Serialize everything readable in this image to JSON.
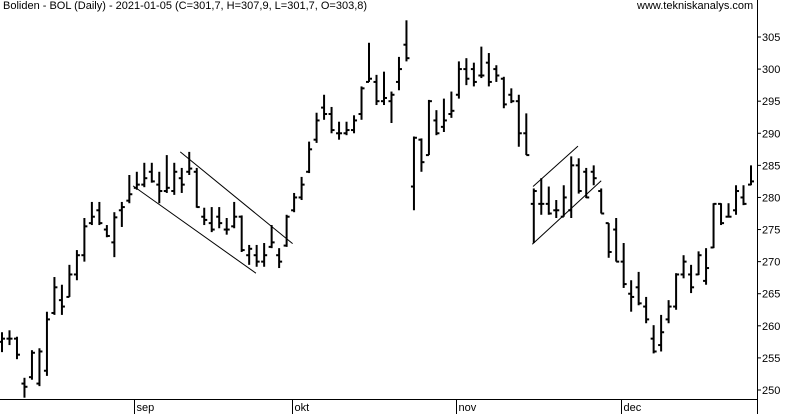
{
  "header": {
    "title": "Boliden - BOL (Daily) - 2021-01-05 (C=301,7, H=307,9, L=301,7, O=303,8)",
    "watermark": "www.tekniskanalys.com"
  },
  "chart_data": {
    "type": "ohlc",
    "title": "Boliden - BOL (Daily) - 2021-01-05 (C=301,7, H=307,9, L=301,7, O=303,8)",
    "ylim": [
      248,
      309
    ],
    "y_ticks": [
      250,
      255,
      260,
      265,
      270,
      275,
      280,
      285,
      290,
      295,
      300,
      305
    ],
    "y_axis_side": "right",
    "grid": false,
    "colors": {
      "bars": "#000000",
      "trendlines": "#000000",
      "background": "#ffffff"
    },
    "x_month_labels": [
      {
        "label": "sep",
        "bar": 18
      },
      {
        "label": "okt",
        "bar": 39
      },
      {
        "label": "nov",
        "bar": 61
      },
      {
        "label": "dec",
        "bar": 83
      }
    ],
    "bars_ohlc": [
      [
        257.5,
        259.0,
        255.9,
        258
      ],
      [
        258,
        259.3,
        257.0,
        258
      ],
      [
        258,
        258.3,
        254.8,
        255.5
      ],
      [
        251,
        251.9,
        248.8,
        250.5
      ],
      [
        252,
        256.2,
        251.6,
        255.8
      ],
      [
        251,
        256.5,
        250.6,
        256
      ],
      [
        253,
        262.2,
        252.2,
        261
      ],
      [
        262,
        267.6,
        261.7,
        266
      ],
      [
        264,
        266.4,
        261.7,
        263
      ],
      [
        264.5,
        269.5,
        264.5,
        268
      ],
      [
        268,
        271.8,
        267.1,
        271
      ],
      [
        271,
        276.8,
        270,
        275.5
      ],
      [
        276,
        279.3,
        275.7,
        277
      ],
      [
        278,
        279.3,
        275.7,
        276
      ],
      [
        275,
        275.7,
        273.8,
        274
      ],
      [
        273,
        277.7,
        270.7,
        276.9
      ],
      [
        278,
        279.3,
        275.4,
        278.5
      ],
      [
        279.5,
        283.5,
        279.1,
        280.5
      ],
      [
        281.5,
        284,
        281.2,
        282
      ],
      [
        282,
        285.4,
        281.6,
        283
      ],
      [
        284,
        285.4,
        282.3,
        282.5
      ],
      [
        282,
        284,
        279.1,
        281
      ],
      [
        281,
        286.6,
        280.7,
        281.5
      ],
      [
        281,
        285.4,
        280.4,
        284
      ],
      [
        283,
        284.6,
        280.7,
        282
      ],
      [
        284,
        287.1,
        283.5,
        284.5
      ],
      [
        284,
        284.6,
        278.4,
        278.5
      ],
      [
        277,
        278.4,
        275.7,
        276.5
      ],
      [
        276,
        278.5,
        274.6,
        275
      ],
      [
        277,
        278.5,
        275.2,
        276
      ],
      [
        275,
        276.8,
        274.2,
        275
      ],
      [
        275.5,
        279.3,
        275.2,
        277
      ],
      [
        277,
        277.2,
        271.5,
        271.8
      ],
      [
        271,
        272.6,
        269.5,
        272
      ],
      [
        271,
        272.6,
        269.2,
        270
      ],
      [
        270,
        272.9,
        269.2,
        271
      ],
      [
        272.3,
        275.7,
        272.1,
        273
      ],
      [
        271,
        272.1,
        269,
        270
      ],
      [
        272.5,
        277.3,
        272.3,
        277
      ],
      [
        278,
        280.7,
        277.7,
        280
      ],
      [
        280,
        283.2,
        279.6,
        282
      ],
      [
        284,
        288.7,
        283.8,
        287.5
      ],
      [
        289,
        293.2,
        288.5,
        292
      ],
      [
        294,
        296,
        292.1,
        293
      ],
      [
        293,
        294.1,
        290,
        290.5
      ],
      [
        290,
        291.8,
        289,
        290
      ],
      [
        290,
        291.8,
        289.7,
        290.5
      ],
      [
        290.5,
        292.8,
        290,
        292
      ],
      [
        293,
        297.3,
        292.1,
        297
      ],
      [
        298,
        304.1,
        298,
        298.5
      ],
      [
        298,
        299.1,
        294.4,
        295
      ],
      [
        295,
        299.6,
        294.4,
        295.5
      ],
      [
        295,
        296.5,
        291.6,
        296
      ],
      [
        298,
        301.9,
        296.7,
        300
      ],
      [
        303.8,
        307.6,
        301.2,
        301.7
      ],
      [
        281.7,
        289.5,
        278,
        289.3
      ],
      [
        289,
        289.2,
        284,
        285.5
      ],
      [
        286.6,
        295.2,
        286.6,
        295
      ],
      [
        292,
        293.6,
        289.7,
        290
      ],
      [
        291,
        295.4,
        290.2,
        292
      ],
      [
        293,
        296.5,
        292.4,
        293.5
      ],
      [
        296,
        301.2,
        295.4,
        300
      ],
      [
        300,
        301.7,
        297.5,
        298.5
      ],
      [
        300,
        301,
        297.3,
        298
      ],
      [
        299,
        303.5,
        298.6,
        299
      ],
      [
        301,
        302.5,
        297.3,
        298
      ],
      [
        300,
        300.6,
        298,
        299
      ],
      [
        298.5,
        298.8,
        293.9,
        294.5
      ],
      [
        296,
        297,
        294.7,
        295
      ],
      [
        295,
        296,
        287.9,
        290
      ],
      [
        290,
        293.1,
        286.6,
        286.6
      ],
      [
        279,
        281.4,
        272.9,
        281
      ],
      [
        279,
        283,
        277.3,
        279
      ],
      [
        279,
        281.7,
        277.3,
        277.5
      ],
      [
        278,
        279.6,
        276.8,
        278
      ],
      [
        277,
        281.9,
        277,
        280
      ],
      [
        278,
        286.4,
        276.8,
        285
      ],
      [
        285,
        286.1,
        280.6,
        281
      ],
      [
        284,
        284.6,
        279.9,
        280
      ],
      [
        284,
        285,
        281.9,
        283
      ],
      [
        281,
        281.4,
        277.5,
        277.5
      ],
      [
        276,
        276,
        270.6,
        271.5
      ],
      [
        275,
        276.8,
        270,
        270
      ],
      [
        270,
        272.9,
        265.9,
        266.5
      ],
      [
        265,
        267.1,
        262.2,
        264.5
      ],
      [
        266,
        268.4,
        263.2,
        263.5
      ],
      [
        263,
        264.5,
        260.4,
        261
      ],
      [
        258,
        260.1,
        255.7,
        256
      ],
      [
        257,
        261.7,
        256,
        259
      ],
      [
        261,
        264,
        260.4,
        263
      ],
      [
        263,
        268.2,
        262.5,
        268
      ],
      [
        268,
        271,
        267.4,
        270
      ],
      [
        268,
        269.5,
        265.1,
        266
      ],
      [
        268,
        271.6,
        267.9,
        271
      ],
      [
        267,
        272.1,
        266.4,
        269
      ],
      [
        272.2,
        279.1,
        272.1,
        279
      ],
      [
        279,
        279.1,
        275.7,
        276
      ],
      [
        277,
        279.1,
        277,
        277
      ],
      [
        278,
        281.9,
        277.3,
        281
      ],
      [
        280,
        281.9,
        278.8,
        279
      ],
      [
        282,
        285,
        281.9,
        282.5
      ]
    ],
    "trendlines": [
      {
        "from": {
          "bar": 23.8,
          "price": 287.1
        },
        "to": {
          "bar": 38.8,
          "price": 272.8
        }
      },
      {
        "from": {
          "bar": 17.5,
          "price": 281.8
        },
        "to": {
          "bar": 33.9,
          "price": 268.2
        }
      },
      {
        "from": {
          "bar": 70.9,
          "price": 281.7
        },
        "to": {
          "bar": 76.9,
          "price": 288.0
        }
      },
      {
        "from": {
          "bar": 70.8,
          "price": 272.7
        },
        "to": {
          "bar": 80.0,
          "price": 282.6
        }
      }
    ]
  }
}
